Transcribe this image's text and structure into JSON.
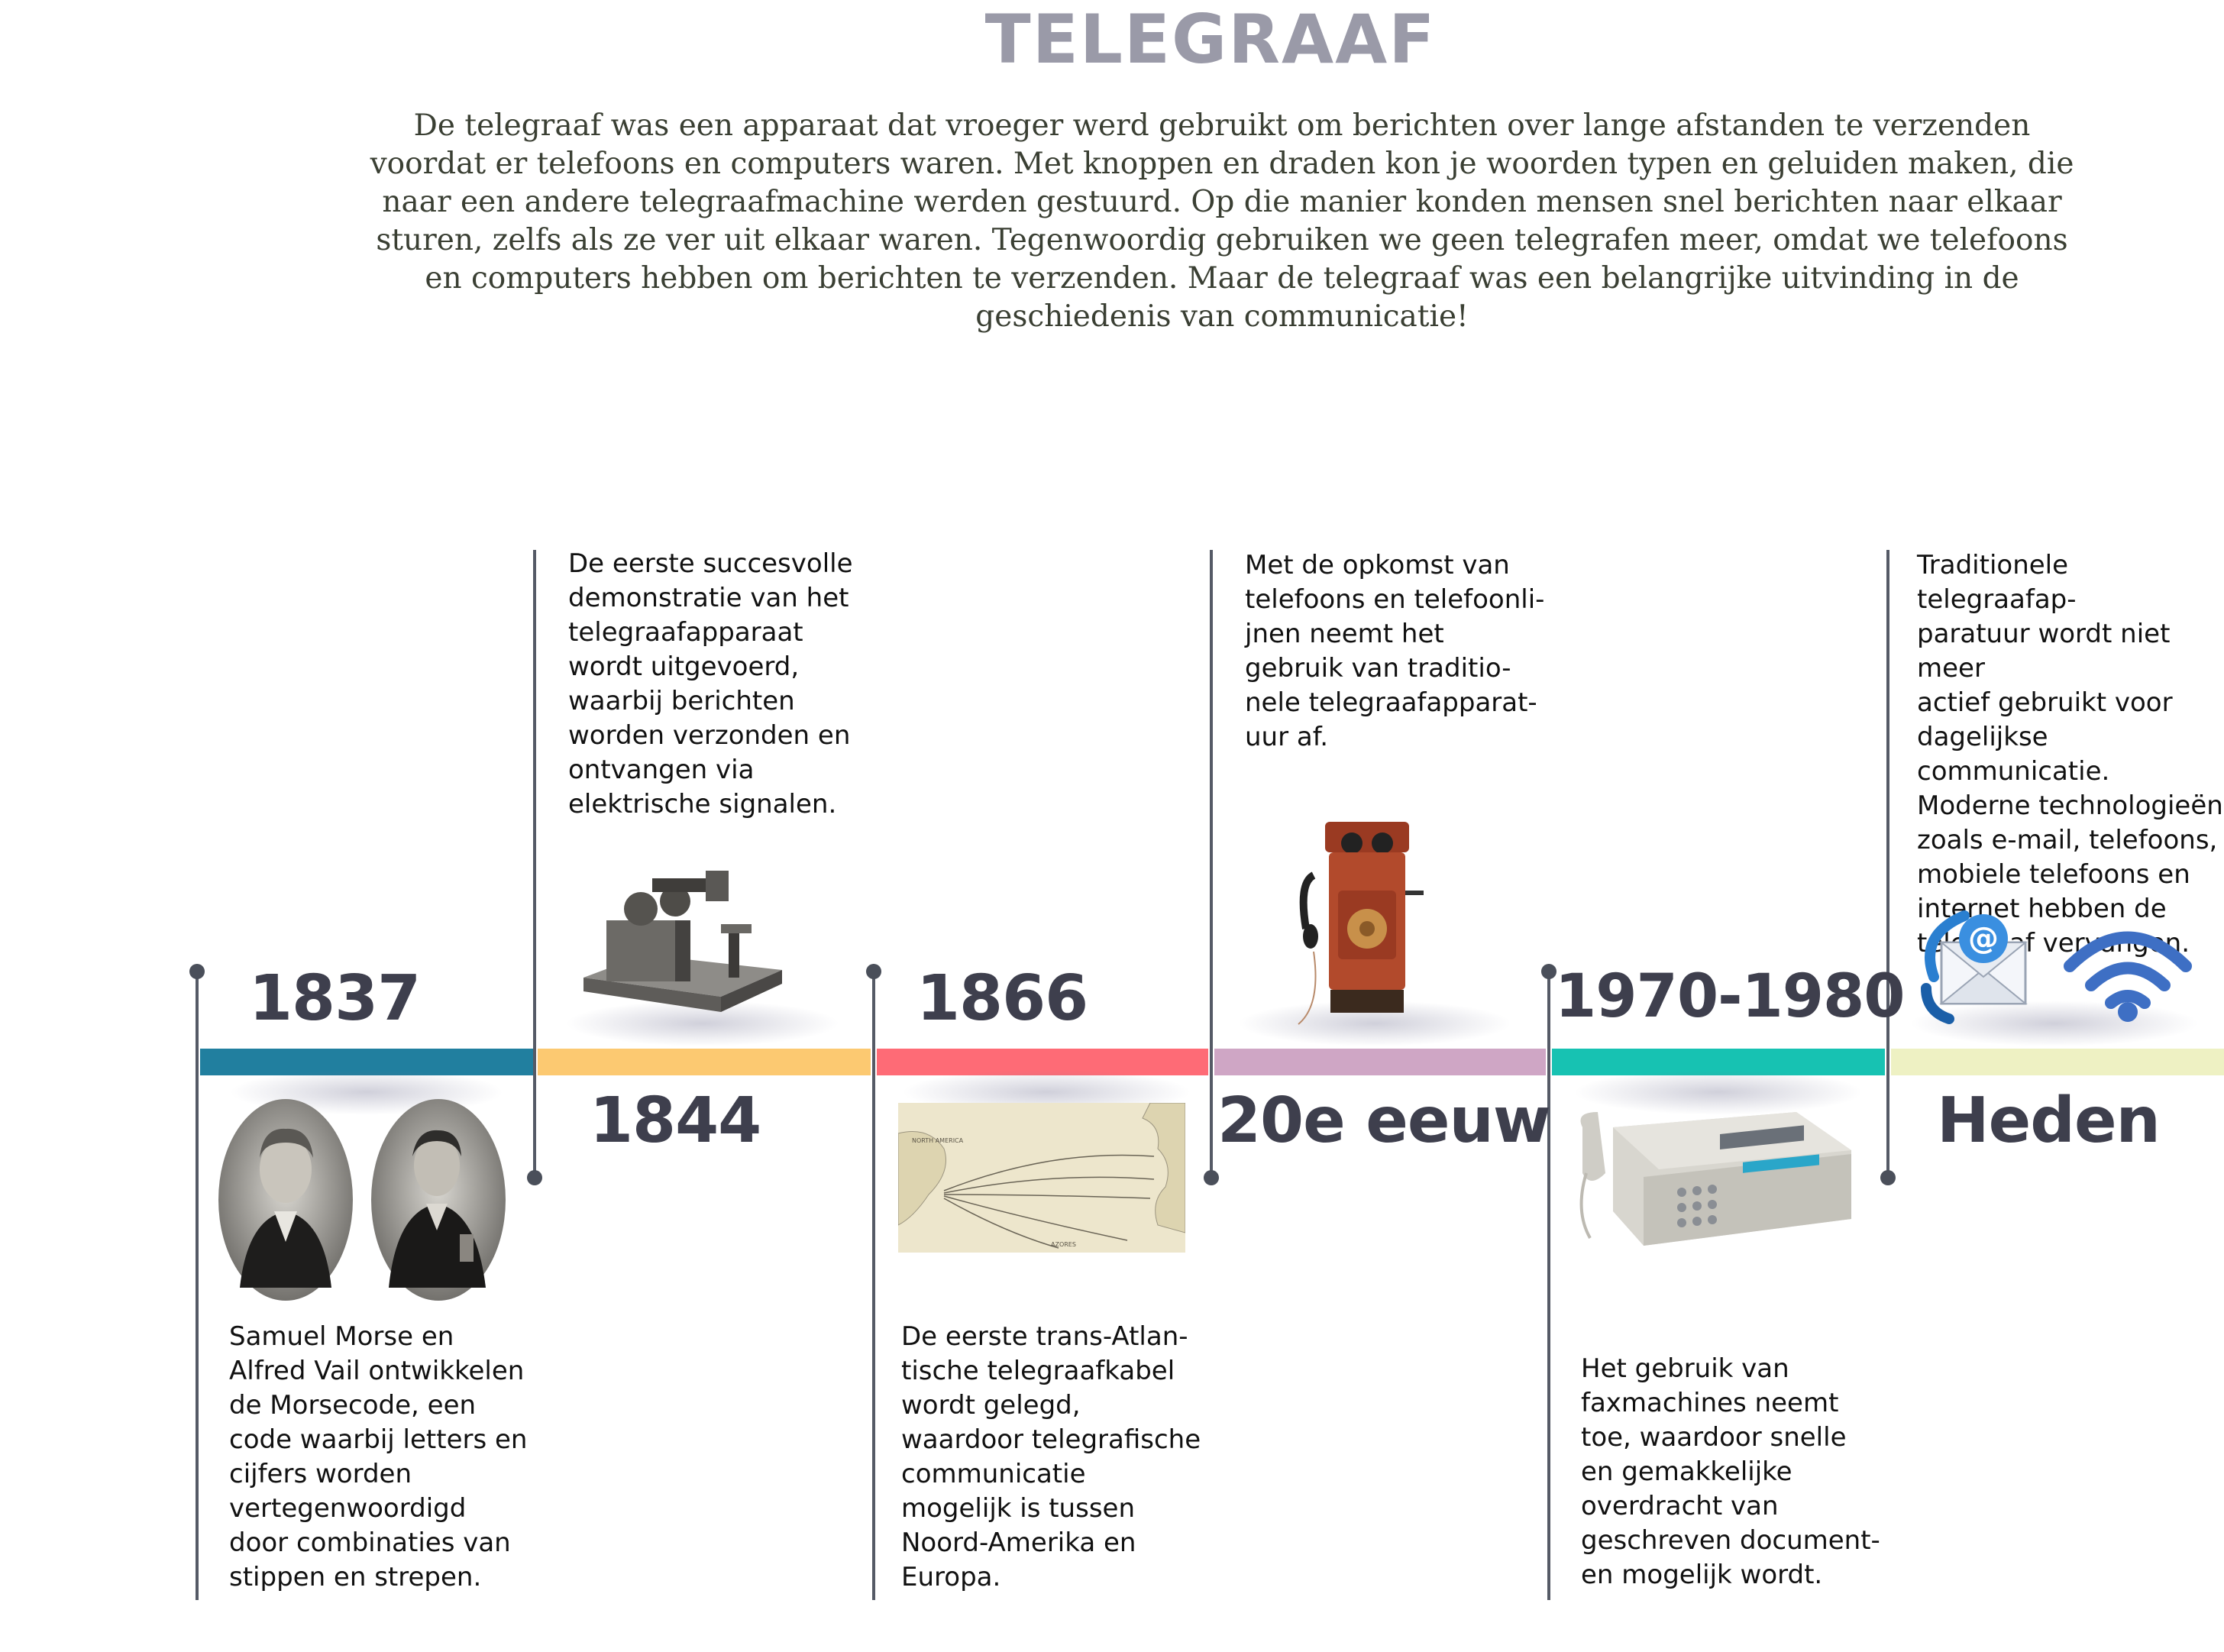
{
  "title": "TELEGRAAF",
  "intro": "De telegraaf was een apparaat dat vroeger werd gebruikt om berichten over lange afstanden te verzenden voordat er telefoons en computers waren. Met knoppen en draden kon je woorden typen en geluiden maken, die naar een andere telegraafmachine werden gestuurd. Op die manier konden mensen snel berichten naar elkaar sturen, zelfs als ze ver uit elkaar waren. Tegenwoordig gebruiken we geen telegrafen meer, omdat we telefoons en computers hebben om berichten te verzenden. Maar de telegraaf was een belangrijke uitvinding in de geschiedenis van communicatie!",
  "colors": {
    "seg1": "#217f9f",
    "seg2": "#fcc971",
    "seg3": "#fe6b76",
    "seg4": "#cfa6c5",
    "seg5": "#17c2b2",
    "seg6": "#eef1c3",
    "year": "#3e3f4d",
    "title": "#9a9aa8"
  },
  "events": [
    {
      "year": "1837",
      "text": "Samuel Morse en\nAlfred Vail ontwikkelen\nde Morsecode, een\ncode waarbij letters en\ncijfers worden\nvertegenwoordigd\ndoor combinaties van\nstippen en strepen.",
      "image": "portraits-of-morse-and-vail"
    },
    {
      "year": "1844",
      "text": "De eerste succesvolle\ndemonstratie van het\ntelegraafapparaat\nwordt uitgevoerd,\nwaarbij berichten\nworden verzonden en\nontvangen via\nelektrische signalen.",
      "image": "telegraph-machine"
    },
    {
      "year": "1866",
      "text": " De eerste trans-Atlan-\ntische telegraafkabel\nwordt gelegd,\nwaardoor telegrafische\ncommunicatie\nmogelijk is tussen\nNoord-Amerika en\nEuropa.",
      "image": "transatlantic-cable-map",
      "map_labels": [
        "NORTH AMERICA",
        "AZORES"
      ]
    },
    {
      "year": "20e eeuw",
      "text": "Met de opkomst van\ntelefoons en telefoonli-\njnen neemt het\ngebruik van traditio-\nnele telegraafapparat-\nuur af.",
      "image": "wall-telephone"
    },
    {
      "year": "1970-1980",
      "text": "Het gebruik van\nfaxmachines neemt\ntoe, waardoor snelle\nen gemakkelijke\noverdracht van\ngeschreven document-\nen mogelijk wordt.",
      "image": "fax-machine"
    },
    {
      "year": "Heden",
      "text": "Traditionele telegraafap-\nparatuur wordt niet meer\nactief gebruikt voor\ndagelijkse communicatie.\nModerne technologieën\nzoals e-mail, telefoons,\nmobiele telefoons en\ninternet hebben de\ntelegraaf vervangen.",
      "image": "email-and-wifi-icons",
      "email_symbol": "@"
    }
  ]
}
